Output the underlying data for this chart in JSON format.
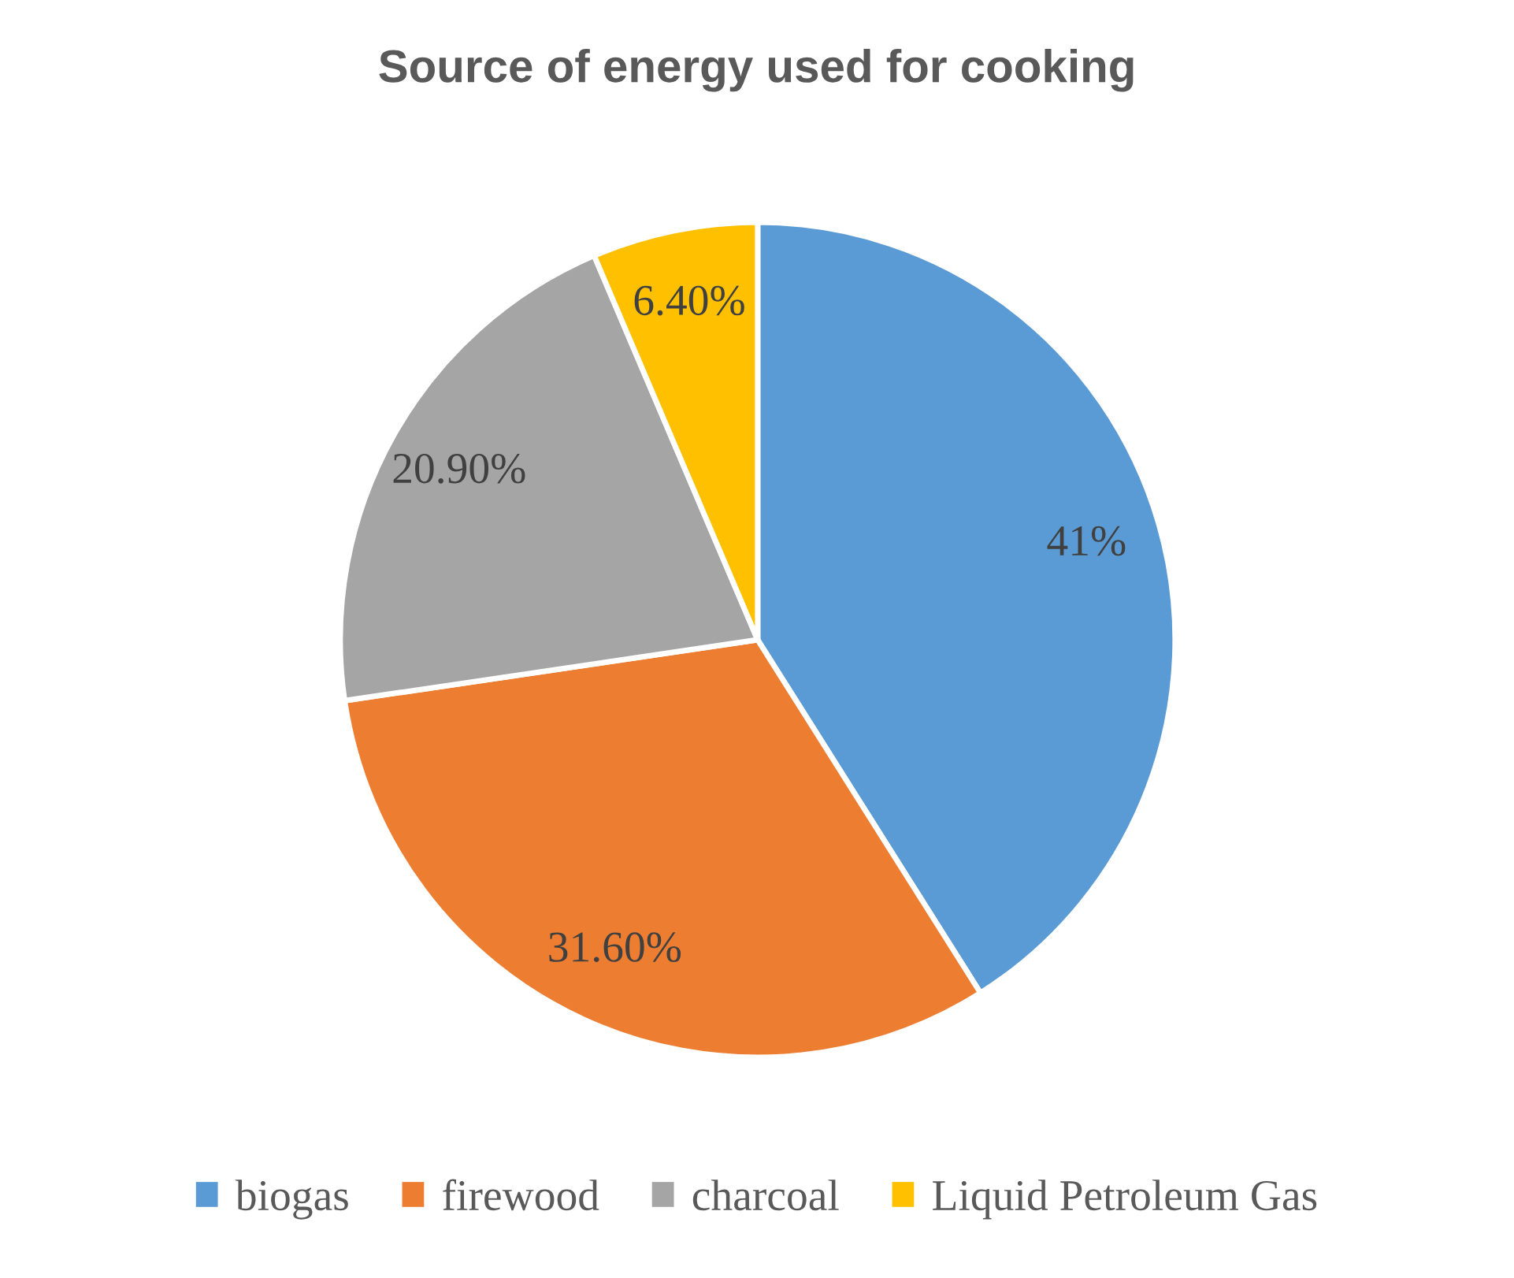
{
  "chart_data": {
    "type": "pie",
    "title": "Source of energy used for cooking",
    "categories": [
      "biogas",
      "firewood",
      "charcoal",
      "Liquid Petroleum Gas"
    ],
    "values": [
      41,
      31.6,
      20.9,
      6.4
    ],
    "colors": [
      "#5b9bd5",
      "#ed7d31",
      "#a5a5a5",
      "#ffc000"
    ],
    "value_labels": [
      "41%",
      "31.60%",
      "20.90%",
      "6.40%"
    ],
    "legend": "bottom"
  }
}
